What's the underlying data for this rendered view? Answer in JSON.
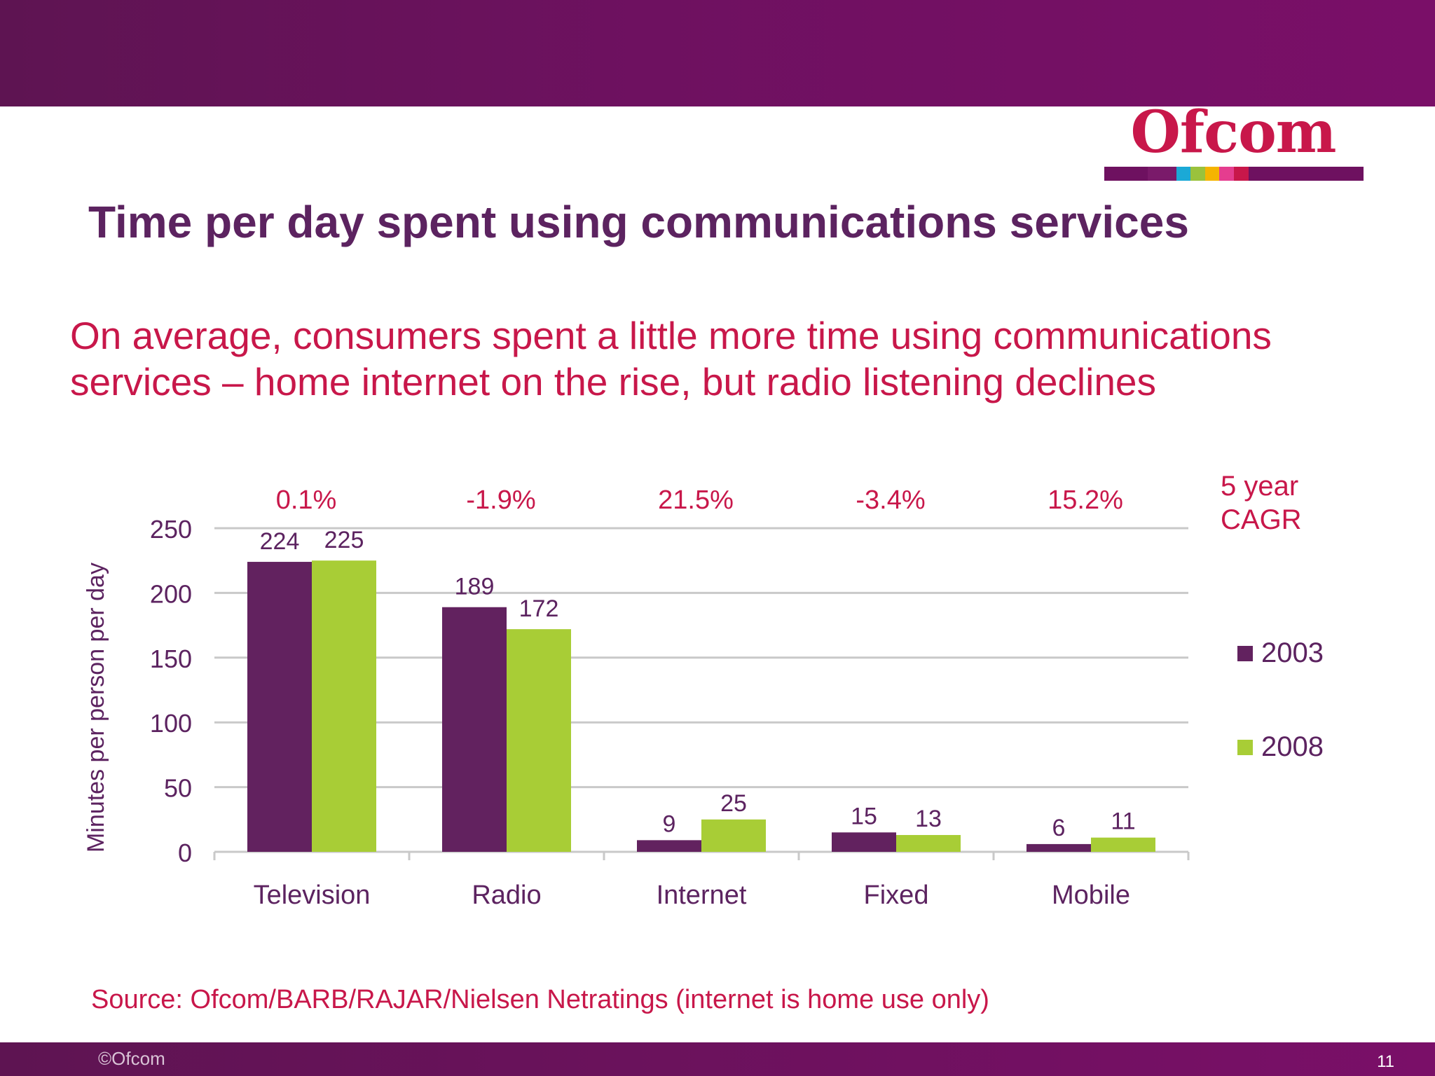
{
  "slide": {
    "title": "Time per day spent using communications services",
    "subtitle_lines": [
      "On average, consumers spent a little more time using communications",
      "services – home internet on the rise, but radio listening declines"
    ],
    "source": "Source: Ofcom/BARB/RAJAR/Nielsen Netratings (internet is home use only)",
    "copyright": "©Ofcom",
    "page_number": "11"
  },
  "logo": {
    "text": "Ofcom",
    "strip_colors": [
      "#6e1160",
      "#7a1a6a",
      "#1ba9d6",
      "#9ac23c",
      "#f5b400",
      "#e53d8f",
      "#c8174a",
      "#6e1160",
      "#6e1160"
    ]
  },
  "colors": {
    "accent": "#c8174a",
    "title": "#5c2360",
    "series_2003": "#62225f",
    "series_2008": "#a8cd36",
    "gridline": "#c9c9c9",
    "axis_text": "#5c2360"
  },
  "chart_data": {
    "type": "bar",
    "title": "",
    "xlabel": "",
    "ylabel": "Minutes per person per day",
    "categories": [
      "Television",
      "Radio",
      "Internet",
      "Fixed",
      "Mobile"
    ],
    "series": [
      {
        "name": "2003",
        "values": [
          224,
          189,
          9,
          15,
          6
        ]
      },
      {
        "name": "2008",
        "values": [
          225,
          172,
          25,
          13,
          11
        ]
      }
    ],
    "cagr_title": [
      "5 year",
      "CAGR"
    ],
    "cagr": [
      "0.1%",
      "-1.9%",
      "21.5%",
      "-3.4%",
      "15.2%"
    ],
    "ylim": [
      0,
      250
    ],
    "yticks": [
      0,
      50,
      100,
      150,
      200,
      250
    ],
    "grid": true,
    "legend": "right"
  }
}
